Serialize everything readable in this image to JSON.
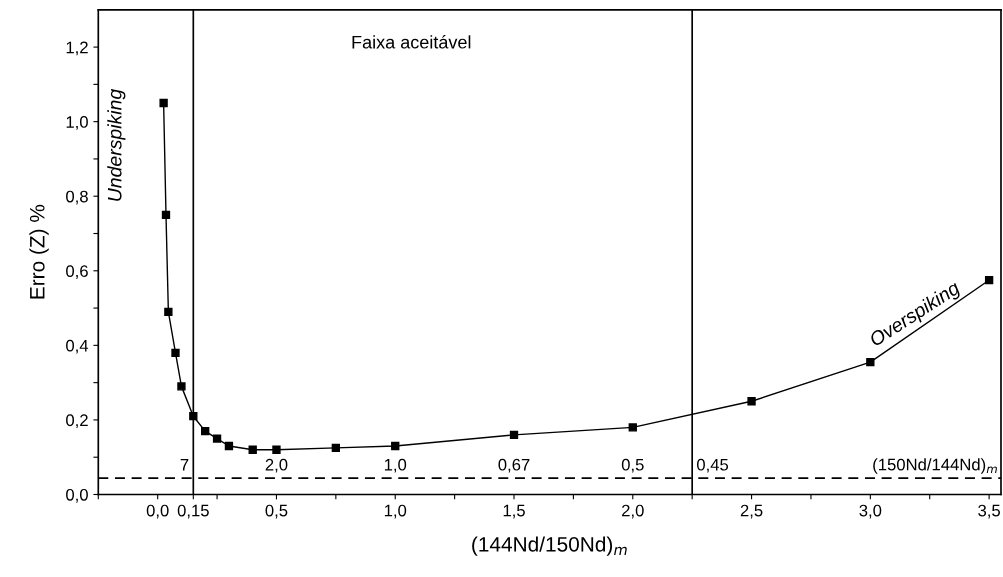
{
  "chart_data": {
    "type": "line",
    "xlabel": "(144Nd/150Nd)$_{m}$",
    "ylabel": "Erro (Z) %",
    "x": [
      0.025,
      0.035,
      0.045,
      0.075,
      0.1,
      0.15,
      0.2,
      0.25,
      0.3,
      0.4,
      0.5,
      0.75,
      1.0,
      1.5,
      2.0,
      2.5,
      3.0,
      3.5
    ],
    "series": [
      {
        "color": "#000000",
        "values": [
          1.05,
          0.75,
          0.49,
          0.38,
          0.29,
          0.21,
          0.17,
          0.15,
          0.13,
          0.12,
          0.12,
          0.125,
          0.13,
          0.16,
          0.18,
          0.25,
          0.355,
          0.575
        ]
      }
    ],
    "marker": "square",
    "line_style": "solid",
    "grid": false,
    "legend": false,
    "xlim": [
      -0.25,
      3.55
    ],
    "ylim": [
      0,
      1.3
    ],
    "xticks": [
      {
        "value": -0.25,
        "label": null
      },
      {
        "value": 0,
        "label": "0,0"
      },
      {
        "value": 0.15,
        "label": "0,15"
      },
      {
        "value": 0.25,
        "label": null
      },
      {
        "value": 0.5,
        "label": "0,5"
      },
      {
        "value": 0.75,
        "label": null
      },
      {
        "value": 1.0,
        "label": "1,0"
      },
      {
        "value": 1.25,
        "label": null
      },
      {
        "value": 1.5,
        "label": "1,5"
      },
      {
        "value": 1.75,
        "label": null
      },
      {
        "value": 2.0,
        "label": "2,0"
      },
      {
        "value": 2.25,
        "label": null
      },
      {
        "value": 2.5,
        "label": "2,5"
      },
      {
        "value": 2.75,
        "label": null
      },
      {
        "value": 3.0,
        "label": "3,0"
      },
      {
        "value": 3.25,
        "label": null
      },
      {
        "value": 3.5,
        "label": "3,5"
      }
    ],
    "yticks": [
      {
        "value": 0,
        "label": "0,0"
      },
      {
        "value": 0.1,
        "label": null
      },
      {
        "value": 0.2,
        "label": "0,2"
      },
      {
        "value": 0.3,
        "label": null
      },
      {
        "value": 0.4,
        "label": "0,4"
      },
      {
        "value": 0.5,
        "label": null
      },
      {
        "value": 0.6,
        "label": "0,6"
      },
      {
        "value": 0.7,
        "label": null
      },
      {
        "value": 0.8,
        "label": "0,8"
      },
      {
        "value": 0.9,
        "label": null
      },
      {
        "value": 1.0,
        "label": "1,0"
      },
      {
        "value": 1.1,
        "label": null
      },
      {
        "value": 1.2,
        "label": "1,2"
      }
    ],
    "ref_lines": [
      {
        "axis": "x",
        "value": 0.15,
        "color": "#000000",
        "line_style": "solid"
      },
      {
        "axis": "x",
        "value": 2.25,
        "color": "#000000",
        "line_style": "solid"
      },
      {
        "axis": "y",
        "value": 0.044,
        "color": "#000000",
        "line_style": "dashed"
      }
    ],
    "annotations": [
      "Faixa aceitável",
      "Underspiking",
      "Overspiking",
      {
        "text": "7",
        "x": 0.15,
        "y": 0.044
      },
      {
        "text": "2,0",
        "x": 0.5,
        "y": 0.044
      },
      {
        "text": "1,0",
        "x": 1.0,
        "y": 0.044
      },
      {
        "text": "0,67",
        "x": 1.5,
        "y": 0.044
      },
      {
        "text": "0,5",
        "x": 2.0,
        "y": 0.044
      },
      {
        "text": "0,45",
        "x": 2.25,
        "y": 0.044
      },
      {
        "text": "(150Nd/144Nd)$_{m}$",
        "x": 3.55,
        "y": 0.044
      }
    ]
  }
}
